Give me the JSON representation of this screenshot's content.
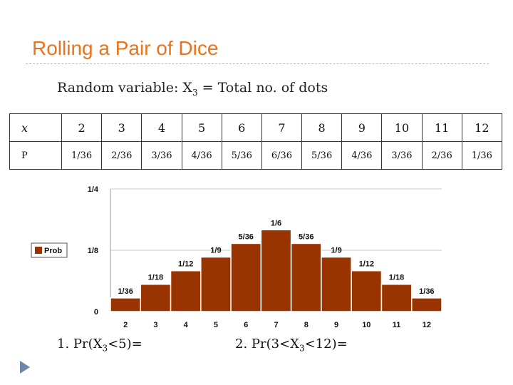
{
  "slide": {
    "title": "Rolling a Pair of Dice",
    "subtitle_pre": "Random variable: X",
    "subtitle_sub": "3",
    "subtitle_post": " = Total no. of dots",
    "q1_pre": "1. Pr(X",
    "q1_sub": "3",
    "q1_post": "<5)=",
    "q2_pre": "2. Pr(3<X",
    "q2_sub": "3",
    "q2_post": "<12)="
  },
  "table": {
    "x_header": "x",
    "p_header": "P",
    "x_values": [
      "2",
      "3",
      "4",
      "5",
      "6",
      "7",
      "8",
      "9",
      "10",
      "11",
      "12"
    ],
    "p_values": [
      "1/36",
      "2/36",
      "3/36",
      "4/36",
      "5/36",
      "6/36",
      "5/36",
      "4/36",
      "3/36",
      "2/36",
      "1/36"
    ]
  },
  "chart_data": {
    "type": "bar",
    "categories": [
      "2",
      "3",
      "4",
      "5",
      "6",
      "7",
      "8",
      "9",
      "10",
      "11",
      "12"
    ],
    "series": [
      {
        "name": "Prob",
        "values": [
          0.0278,
          0.0556,
          0.0833,
          0.1111,
          0.1389,
          0.1667,
          0.1389,
          0.1111,
          0.0833,
          0.0556,
          0.0278
        ],
        "labels": [
          "1/36",
          "1/18",
          "1/12",
          "1/9",
          "5/36",
          "1/6",
          "5/36",
          "1/9",
          "1/12",
          "1/18",
          "1/36"
        ]
      }
    ],
    "ylim": [
      0,
      0.25
    ],
    "y_ticks": [
      0,
      0.125,
      0.25
    ],
    "y_tick_labels": [
      "0",
      "1/8",
      "1/4"
    ],
    "legend_position": "left",
    "grid": true,
    "colors": {
      "bar": "#993300",
      "bar_edge": "#ffffff",
      "grid": "#c8c8c8",
      "legend_swatch": "#993300"
    }
  }
}
